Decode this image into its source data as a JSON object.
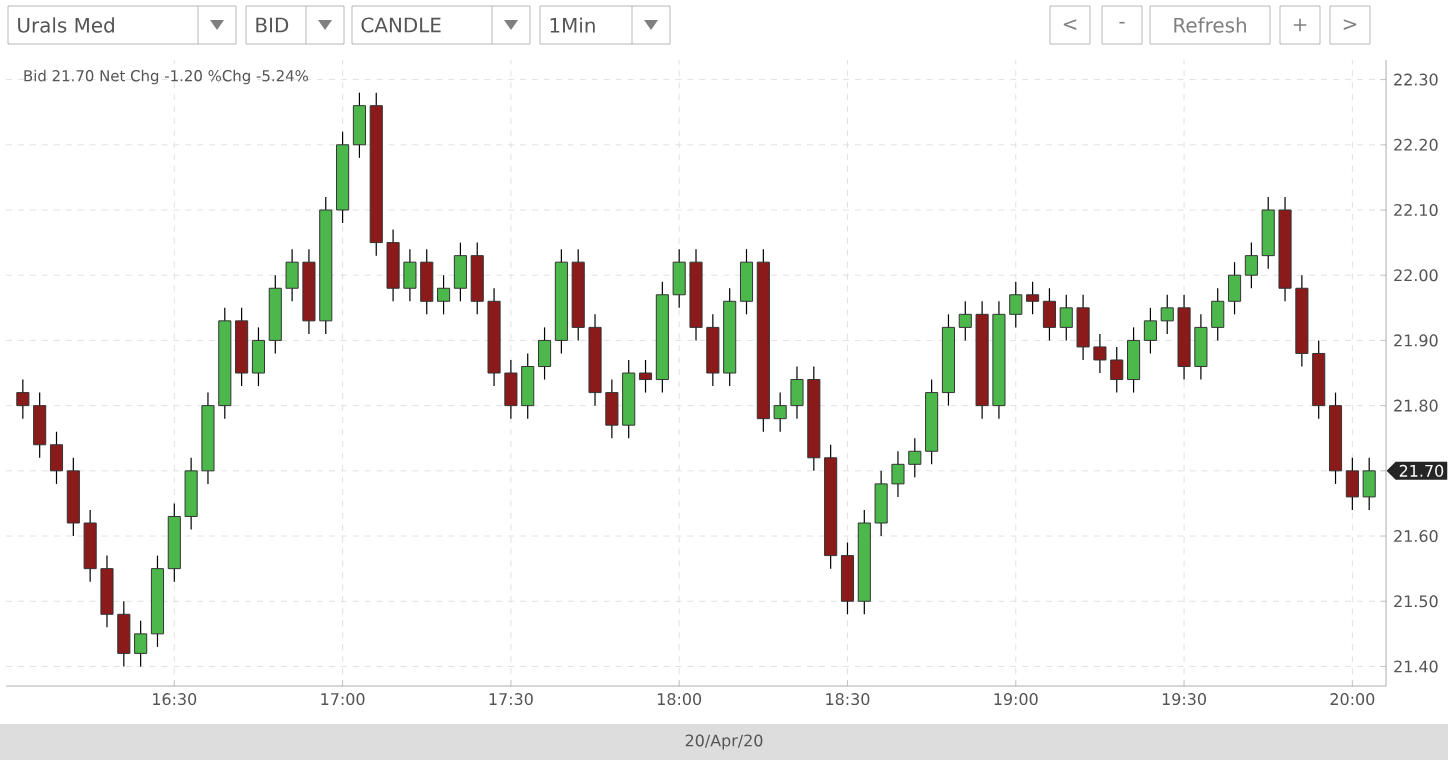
{
  "chart_data": {
    "type": "candlestick",
    "title": "Urals Med",
    "subtitle": "Bid 21.70 Net Chg -1.20 %Chg -5.24%",
    "xlabel": "20/Apr/20",
    "annotations": [
      "BID",
      "CANDLE",
      "1Min",
      "<",
      "-",
      "Refresh",
      "+",
      ">",
      "21.70"
    ],
    "x": [
      16.05,
      16.1,
      16.15,
      16.2,
      16.25,
      16.3,
      16.35,
      16.4,
      16.45,
      16.5,
      16.55,
      16.6,
      16.65,
      16.7,
      16.75,
      16.8,
      16.85,
      16.9,
      16.95,
      17.0,
      17.05,
      17.1,
      17.15,
      17.2,
      17.25,
      17.3,
      17.35,
      17.4,
      17.45,
      17.5,
      17.55,
      17.6,
      17.65,
      17.7,
      17.75,
      17.8,
      17.85,
      17.9,
      17.95,
      18.0,
      18.05,
      18.1,
      18.15,
      18.2,
      18.25,
      18.3,
      18.35,
      18.4,
      18.45,
      18.5,
      18.55,
      18.6,
      18.65,
      18.7,
      18.75,
      18.8,
      18.85,
      18.9,
      18.95,
      19.0,
      19.05,
      19.1,
      19.15,
      19.2,
      19.25,
      19.3,
      19.35,
      19.4,
      19.45,
      19.5,
      19.55,
      19.6,
      19.65,
      19.7,
      19.75,
      19.8,
      19.85,
      19.9,
      19.95,
      20.0,
      20.05
    ],
    "ohlc": [
      [
        21.82,
        21.84,
        21.78,
        21.8
      ],
      [
        21.8,
        21.82,
        21.72,
        21.74
      ],
      [
        21.74,
        21.76,
        21.68,
        21.7
      ],
      [
        21.7,
        21.72,
        21.6,
        21.62
      ],
      [
        21.62,
        21.64,
        21.53,
        21.55
      ],
      [
        21.55,
        21.57,
        21.46,
        21.48
      ],
      [
        21.48,
        21.5,
        21.4,
        21.42
      ],
      [
        21.42,
        21.47,
        21.4,
        21.45
      ],
      [
        21.45,
        21.57,
        21.43,
        21.55
      ],
      [
        21.55,
        21.65,
        21.53,
        21.63
      ],
      [
        21.63,
        21.72,
        21.61,
        21.7
      ],
      [
        21.7,
        21.82,
        21.68,
        21.8
      ],
      [
        21.8,
        21.95,
        21.78,
        21.93
      ],
      [
        21.93,
        21.95,
        21.83,
        21.85
      ],
      [
        21.85,
        21.92,
        21.83,
        21.9
      ],
      [
        21.9,
        22.0,
        21.88,
        21.98
      ],
      [
        21.98,
        22.04,
        21.96,
        22.02
      ],
      [
        22.02,
        22.04,
        21.91,
        21.93
      ],
      [
        21.93,
        22.12,
        21.91,
        22.1
      ],
      [
        22.1,
        22.22,
        22.08,
        22.2
      ],
      [
        22.2,
        22.28,
        22.18,
        22.26
      ],
      [
        22.26,
        22.28,
        22.03,
        22.05
      ],
      [
        22.05,
        22.07,
        21.96,
        21.98
      ],
      [
        21.98,
        22.04,
        21.96,
        22.02
      ],
      [
        22.02,
        22.04,
        21.94,
        21.96
      ],
      [
        21.96,
        22.0,
        21.94,
        21.98
      ],
      [
        21.98,
        22.05,
        21.96,
        22.03
      ],
      [
        22.03,
        22.05,
        21.94,
        21.96
      ],
      [
        21.96,
        21.98,
        21.83,
        21.85
      ],
      [
        21.85,
        21.87,
        21.78,
        21.8
      ],
      [
        21.8,
        21.88,
        21.78,
        21.86
      ],
      [
        21.86,
        21.92,
        21.84,
        21.9
      ],
      [
        21.9,
        22.04,
        21.88,
        22.02
      ],
      [
        22.02,
        22.04,
        21.9,
        21.92
      ],
      [
        21.92,
        21.94,
        21.8,
        21.82
      ],
      [
        21.82,
        21.84,
        21.75,
        21.77
      ],
      [
        21.77,
        21.87,
        21.75,
        21.85
      ],
      [
        21.85,
        21.87,
        21.82,
        21.84
      ],
      [
        21.84,
        21.99,
        21.82,
        21.97
      ],
      [
        21.97,
        22.04,
        21.95,
        22.02
      ],
      [
        22.02,
        22.04,
        21.9,
        21.92
      ],
      [
        21.92,
        21.94,
        21.83,
        21.85
      ],
      [
        21.85,
        21.98,
        21.83,
        21.96
      ],
      [
        21.96,
        22.04,
        21.94,
        22.02
      ],
      [
        22.02,
        22.04,
        21.76,
        21.78
      ],
      [
        21.78,
        21.82,
        21.76,
        21.8
      ],
      [
        21.8,
        21.86,
        21.78,
        21.84
      ],
      [
        21.84,
        21.86,
        21.7,
        21.72
      ],
      [
        21.72,
        21.74,
        21.55,
        21.57
      ],
      [
        21.57,
        21.59,
        21.48,
        21.5
      ],
      [
        21.5,
        21.64,
        21.48,
        21.62
      ],
      [
        21.62,
        21.7,
        21.6,
        21.68
      ],
      [
        21.68,
        21.73,
        21.66,
        21.71
      ],
      [
        21.71,
        21.75,
        21.69,
        21.73
      ],
      [
        21.73,
        21.84,
        21.71,
        21.82
      ],
      [
        21.82,
        21.94,
        21.8,
        21.92
      ],
      [
        21.92,
        21.96,
        21.9,
        21.94
      ],
      [
        21.94,
        21.96,
        21.78,
        21.8
      ],
      [
        21.8,
        21.96,
        21.78,
        21.94
      ],
      [
        21.94,
        21.99,
        21.92,
        21.97
      ],
      [
        21.97,
        21.99,
        21.94,
        21.96
      ],
      [
        21.96,
        21.98,
        21.9,
        21.92
      ],
      [
        21.92,
        21.97,
        21.9,
        21.95
      ],
      [
        21.95,
        21.97,
        21.87,
        21.89
      ],
      [
        21.89,
        21.91,
        21.85,
        21.87
      ],
      [
        21.87,
        21.89,
        21.82,
        21.84
      ],
      [
        21.84,
        21.92,
        21.82,
        21.9
      ],
      [
        21.9,
        21.95,
        21.88,
        21.93
      ],
      [
        21.93,
        21.97,
        21.91,
        21.95
      ],
      [
        21.95,
        21.97,
        21.84,
        21.86
      ],
      [
        21.86,
        21.94,
        21.84,
        21.92
      ],
      [
        21.92,
        21.98,
        21.9,
        21.96
      ],
      [
        21.96,
        22.02,
        21.94,
        22.0
      ],
      [
        22.0,
        22.05,
        21.98,
        22.03
      ],
      [
        22.03,
        22.12,
        22.01,
        22.1
      ],
      [
        22.1,
        22.12,
        21.96,
        21.98
      ],
      [
        21.98,
        22.0,
        21.86,
        21.88
      ],
      [
        21.88,
        21.9,
        21.78,
        21.8
      ],
      [
        21.8,
        21.82,
        21.68,
        21.7
      ],
      [
        21.7,
        21.72,
        21.64,
        21.66
      ],
      [
        21.66,
        21.72,
        21.64,
        21.7
      ]
    ],
    "xlim": [
      16.0,
      20.1
    ],
    "ylim": [
      21.37,
      22.33
    ],
    "xticks": [
      {
        "value": 16.5,
        "label": "16:30"
      },
      {
        "value": 17.0,
        "label": "17:00"
      },
      {
        "value": 17.5,
        "label": "17:30"
      },
      {
        "value": 18.0,
        "label": "18:00"
      },
      {
        "value": 18.5,
        "label": "18:30"
      },
      {
        "value": 19.0,
        "label": "19:00"
      },
      {
        "value": 19.5,
        "label": "19:30"
      },
      {
        "value": 20.0,
        "label": "20:00"
      }
    ],
    "yticks": [
      {
        "value": 21.4,
        "label": "21.40"
      },
      {
        "value": 21.5,
        "label": "21.50"
      },
      {
        "value": 21.6,
        "label": "21.60"
      },
      {
        "value": 21.7,
        "label": null
      },
      {
        "value": 21.8,
        "label": "21.80"
      },
      {
        "value": 21.9,
        "label": "21.90"
      },
      {
        "value": 22.0,
        "label": "22.00"
      },
      {
        "value": 22.1,
        "label": "22.10"
      },
      {
        "value": 22.2,
        "label": "22.20"
      },
      {
        "value": 22.3,
        "label": "22.30"
      }
    ],
    "grid": true
  }
}
